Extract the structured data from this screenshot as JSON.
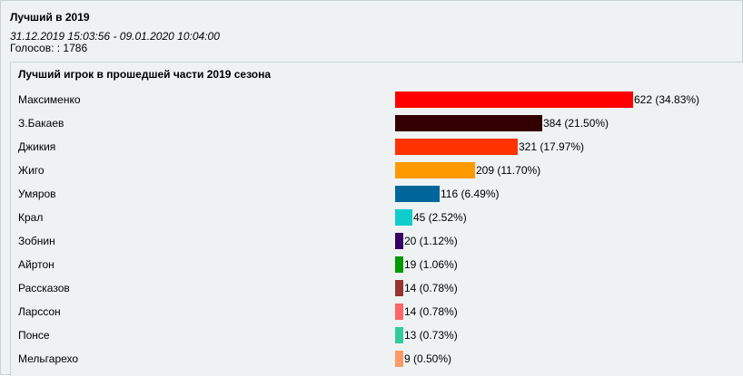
{
  "poll": {
    "title": "Лучший в 2019",
    "dates": "31.12.2019 15:03:56 - 09.01.2020 10:04:00",
    "votes_text": "Голосов: : 1786"
  },
  "question": "Лучший игрок в прошедшей части 2019 сезона",
  "max_votes": 622,
  "options": [
    {
      "label": "Максименко",
      "votes": 622,
      "value_text": "622 (34.83%)",
      "color": "#ff0000"
    },
    {
      "label": "З.Бакаев",
      "votes": 384,
      "value_text": "384 (21.50%)",
      "color": "#330000"
    },
    {
      "label": "Джикия",
      "votes": 321,
      "value_text": "321 (17.97%)",
      "color": "#ff3300"
    },
    {
      "label": "Жиго",
      "votes": 209,
      "value_text": "209 (11.70%)",
      "color": "#ff9900"
    },
    {
      "label": "Умяров",
      "votes": 116,
      "value_text": "116 (6.49%)",
      "color": "#006699"
    },
    {
      "label": "Крал",
      "votes": 45,
      "value_text": "45 (2.52%)",
      "color": "#11cccc"
    },
    {
      "label": "Зобнин",
      "votes": 20,
      "value_text": "20 (1.12%)",
      "color": "#330066"
    },
    {
      "label": "Айртон",
      "votes": 19,
      "value_text": "19 (1.06%)",
      "color": "#009900"
    },
    {
      "label": "Рассказов",
      "votes": 14,
      "value_text": "14 (0.78%)",
      "color": "#993333"
    },
    {
      "label": "Ларссон",
      "votes": 14,
      "value_text": "14 (0.78%)",
      "color": "#ff6666"
    },
    {
      "label": "Понсе",
      "votes": 13,
      "value_text": "13 (0.73%)",
      "color": "#33cc99"
    },
    {
      "label": "Мельгарехо",
      "votes": 9,
      "value_text": "9 (0.50%)",
      "color": "#ff9966"
    }
  ]
}
